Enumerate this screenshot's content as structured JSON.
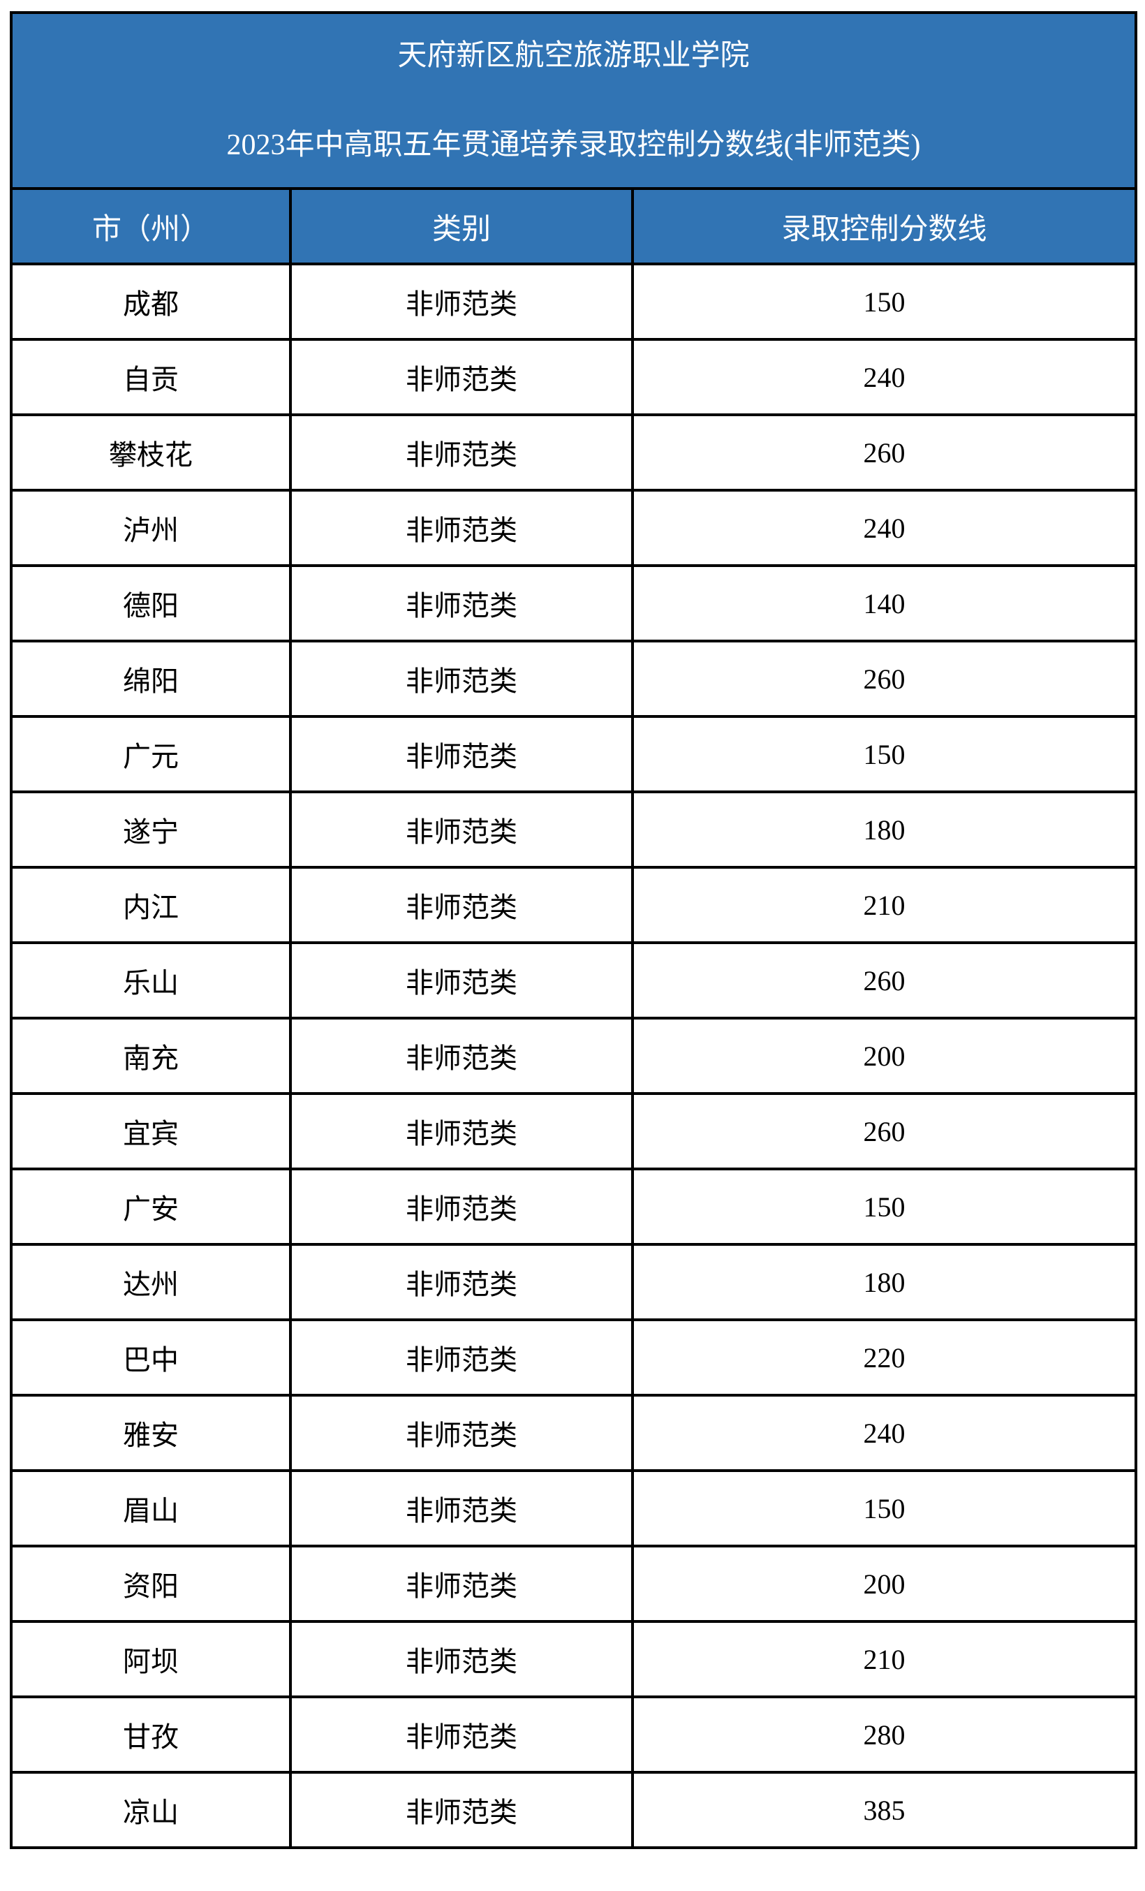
{
  "title": {
    "line1": "天府新区航空旅游职业学院",
    "line2": "2023年中高职五年贯通培养录取控制分数线(非师范类)"
  },
  "colors": {
    "header_bg": "#3174b4",
    "header_text": "#ffffff",
    "border": "#000000"
  },
  "table": {
    "headers": [
      "市（州）",
      "类别",
      "录取控制分数线"
    ],
    "rows": [
      [
        "成都",
        "非师范类",
        "150"
      ],
      [
        "自贡",
        "非师范类",
        "240"
      ],
      [
        "攀枝花",
        "非师范类",
        "260"
      ],
      [
        "泸州",
        "非师范类",
        "240"
      ],
      [
        "德阳",
        "非师范类",
        "140"
      ],
      [
        "绵阳",
        "非师范类",
        "260"
      ],
      [
        "广元",
        "非师范类",
        "150"
      ],
      [
        "遂宁",
        "非师范类",
        "180"
      ],
      [
        "内江",
        "非师范类",
        "210"
      ],
      [
        "乐山",
        "非师范类",
        "260"
      ],
      [
        "南充",
        "非师范类",
        "200"
      ],
      [
        "宜宾",
        "非师范类",
        "260"
      ],
      [
        "广安",
        "非师范类",
        "150"
      ],
      [
        "达州",
        "非师范类",
        "180"
      ],
      [
        "巴中",
        "非师范类",
        "220"
      ],
      [
        "雅安",
        "非师范类",
        "240"
      ],
      [
        "眉山",
        "非师范类",
        "150"
      ],
      [
        "资阳",
        "非师范类",
        "200"
      ],
      [
        "阿坝",
        "非师范类",
        "210"
      ],
      [
        "甘孜",
        "非师范类",
        "280"
      ],
      [
        "凉山",
        "非师范类",
        "385"
      ]
    ]
  }
}
